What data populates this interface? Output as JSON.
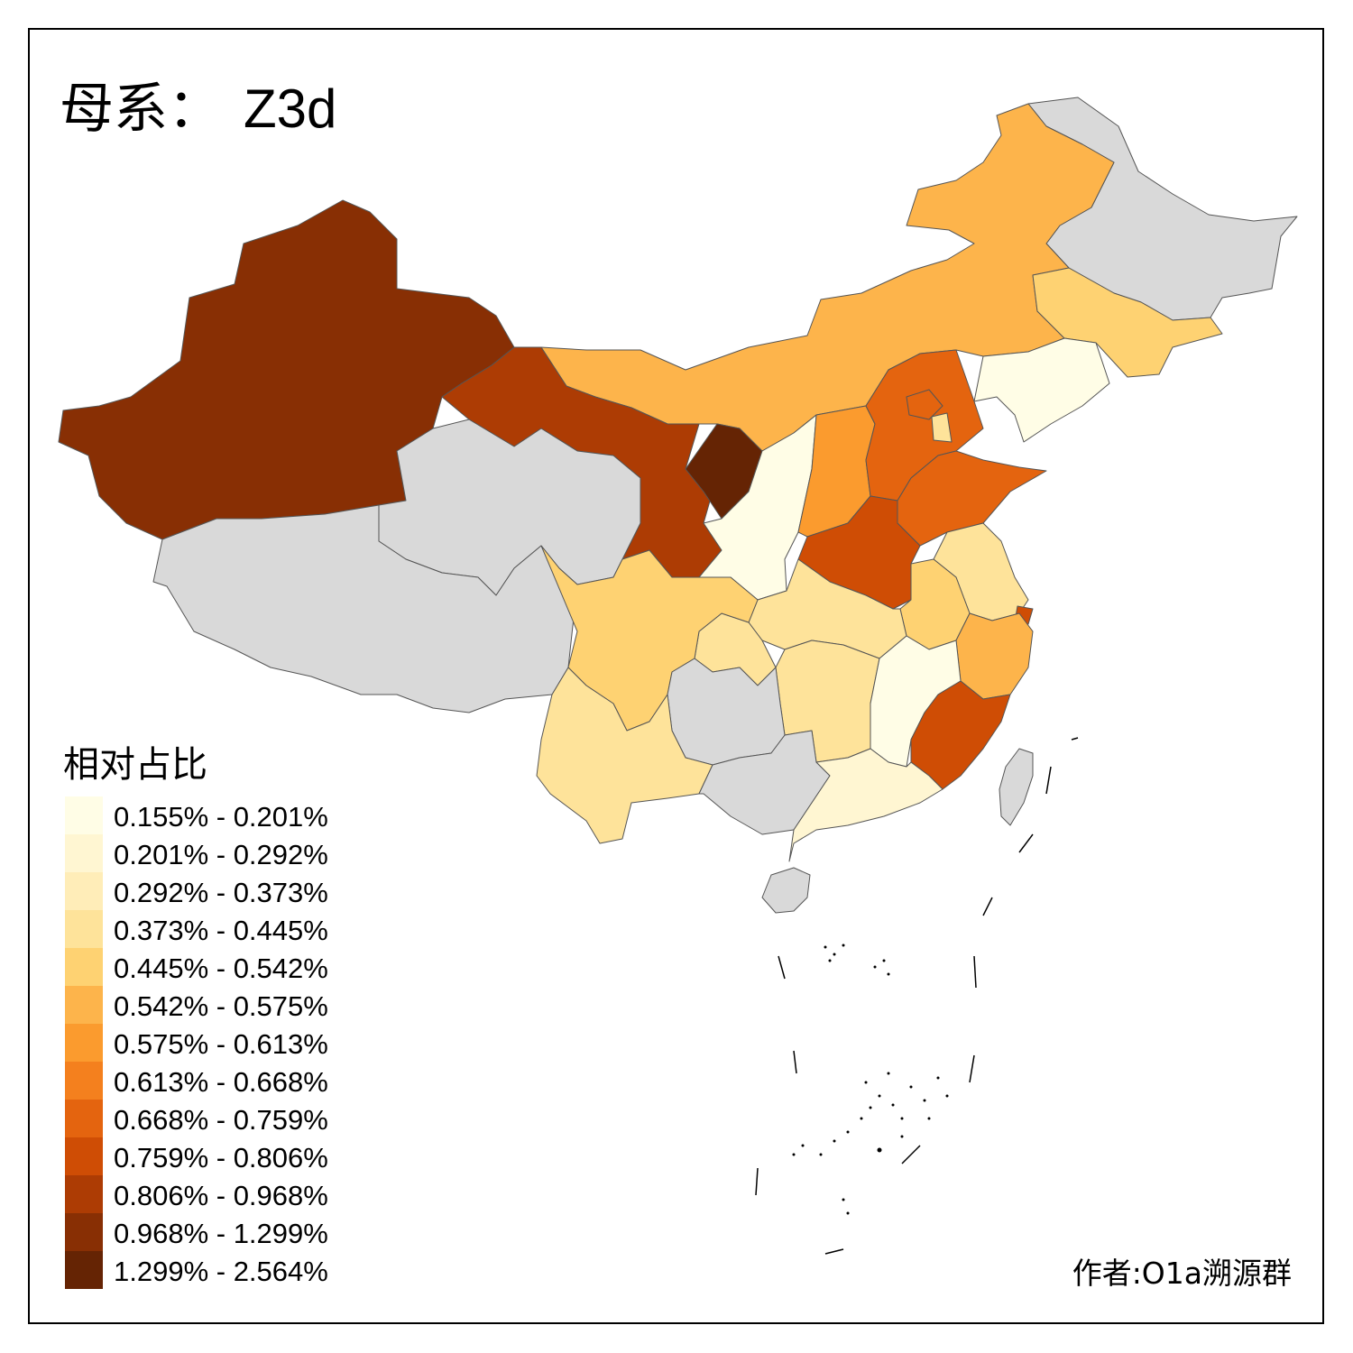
{
  "title": {
    "prefix": "母系：",
    "haplogroup": "Z3d"
  },
  "legend": {
    "title": "相对占比",
    "items": [
      {
        "label": "0.155% - 0.201%",
        "color": "#FFFDE6"
      },
      {
        "label": "0.201% - 0.292%",
        "color": "#FFF6D2"
      },
      {
        "label": "0.292% - 0.373%",
        "color": "#FFEDB8"
      },
      {
        "label": "0.373% - 0.445%",
        "color": "#FEE39A"
      },
      {
        "label": "0.445% - 0.542%",
        "color": "#FED272"
      },
      {
        "label": "0.542% - 0.575%",
        "color": "#FDB44B"
      },
      {
        "label": "0.575% - 0.613%",
        "color": "#FB9B2E"
      },
      {
        "label": "0.613% - 0.668%",
        "color": "#F4801E"
      },
      {
        "label": "0.668% - 0.759%",
        "color": "#E4640F"
      },
      {
        "label": "0.759% - 0.806%",
        "color": "#CF4D05"
      },
      {
        "label": "0.806% - 0.968%",
        "color": "#AD3C04"
      },
      {
        "label": "0.968% - 1.299%",
        "color": "#882F04"
      },
      {
        "label": "1.299% - 2.564%",
        "color": "#652404"
      }
    ]
  },
  "no_data_color": "#D9D9D9",
  "author": "作者:O1a溯源群"
}
